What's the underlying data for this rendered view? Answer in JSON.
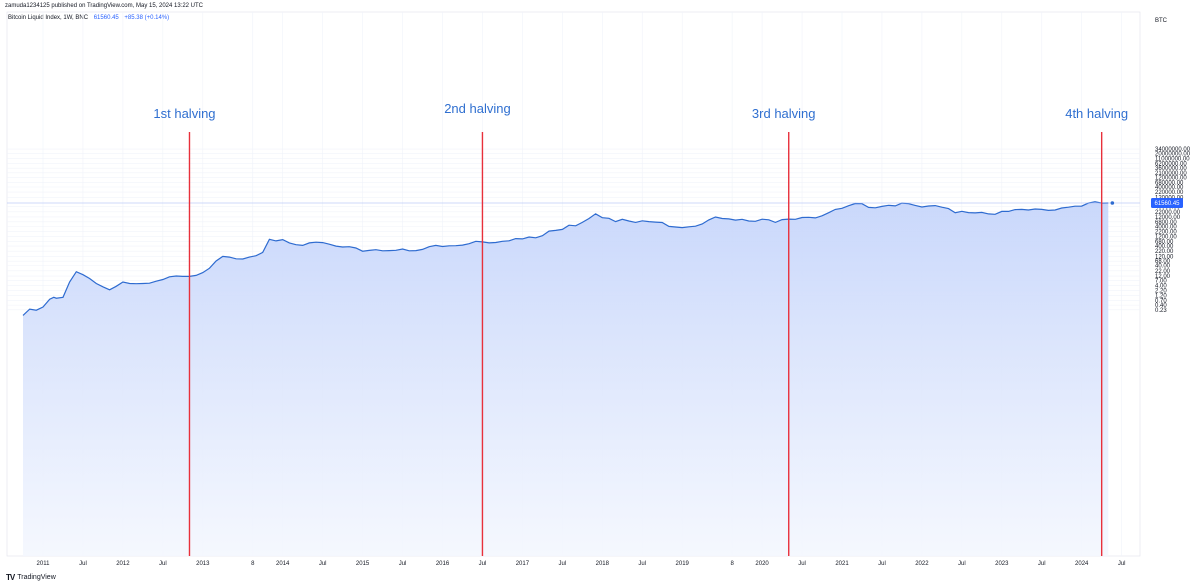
{
  "header": {
    "published_text": "zamuda1234125 published on TradingView.com, May 15, 2024 13:22 UTC"
  },
  "legend": {
    "symbol": "Bitcoin Liquid Index, 1W, BNC",
    "last_price": "61560.45",
    "change": "+85.38 (+0.14%)"
  },
  "footer": {
    "logo_text": "TradingView"
  },
  "colors": {
    "line": "#2e6bd0",
    "fill_top": "#c7d6fb",
    "fill_bottom": "#f4f7fe",
    "halving_line": "#e8303b",
    "halving_text": "#2f6fd0",
    "price_label_bg": "#2962ff"
  },
  "chart_data": {
    "type": "area",
    "title": "",
    "xlabel": "",
    "ylabel": "",
    "currency": "BTC",
    "y_scale": "log",
    "grid": true,
    "last_price": 61560.45,
    "last_price_label": "61560.45",
    "time_range": [
      "2010-10",
      "2024-05"
    ],
    "x_ticks": [
      "2011",
      "Jul",
      "2012",
      "Jul",
      "2013",
      "8",
      "2014",
      "Jul",
      "2015",
      "Jul",
      "2016",
      "Jul",
      "2017",
      "Jul",
      "2018",
      "Jul",
      "2019",
      "8",
      "2020",
      "Jul",
      "2021",
      "Jul",
      "2022",
      "Jul",
      "2023",
      "Jul",
      "2024",
      "Jul"
    ],
    "y_ticks": [
      "0.23",
      "0.40",
      "0.70",
      "1.20",
      "2.20",
      "4.00",
      "7.00",
      "12.00",
      "22.00",
      "40.00",
      "68.00",
      "120.00",
      "220.00",
      "400.00",
      "680.00",
      "1200.00",
      "2200.00",
      "4000.00",
      "6800.00",
      "12000.00",
      "22000.00",
      "40000.00",
      "120000.00",
      "220000.00",
      "400000.00",
      "680000.00",
      "1200000.00",
      "2100000.00",
      "3600000.00",
      "6200000.00",
      "11000000.00",
      "20000000.00",
      "34000000.00"
    ],
    "halvings": [
      {
        "label": "1st halving",
        "date": "2012-11"
      },
      {
        "label": "2nd halving",
        "date": "2016-07"
      },
      {
        "label": "3rd halving",
        "date": "2020-05"
      },
      {
        "label": "4th halving",
        "date": "2024-04"
      }
    ],
    "series": [
      {
        "values": [
          [
            "2010-10",
            0.12
          ],
          [
            "2010-11",
            0.25
          ],
          [
            "2010-12",
            0.22
          ],
          [
            "2011-01",
            0.32
          ],
          [
            "2011-02",
            0.8
          ],
          [
            "2011-02-20",
            1.0
          ],
          [
            "2011-03",
            0.9
          ],
          [
            "2011-04",
            1.0
          ],
          [
            "2011-05",
            6.0
          ],
          [
            "2011-06",
            20.0
          ],
          [
            "2011-07",
            14.0
          ],
          [
            "2011-08",
            9.0
          ],
          [
            "2011-09",
            5.0
          ],
          [
            "2011-10",
            3.4
          ],
          [
            "2011-11",
            2.4
          ],
          [
            "2011-12",
            3.6
          ],
          [
            "2012-01",
            6.0
          ],
          [
            "2012-02",
            5.0
          ],
          [
            "2012-03",
            4.9
          ],
          [
            "2012-04",
            5.0
          ],
          [
            "2012-05",
            5.2
          ],
          [
            "2012-06",
            6.6
          ],
          [
            "2012-07",
            8.0
          ],
          [
            "2012-08",
            11.0
          ],
          [
            "2012-09",
            12.0
          ],
          [
            "2012-10",
            11.5
          ],
          [
            "2012-11",
            11.5
          ],
          [
            "2012-12",
            13.0
          ],
          [
            "2013-01",
            18.0
          ],
          [
            "2013-02",
            30.0
          ],
          [
            "2013-03",
            70.0
          ],
          [
            "2013-04",
            120.0
          ],
          [
            "2013-05",
            110.0
          ],
          [
            "2013-06",
            90.0
          ],
          [
            "2013-07",
            88.0
          ],
          [
            "2013-08",
            110.0
          ],
          [
            "2013-09",
            130.0
          ],
          [
            "2013-10",
            190.0
          ],
          [
            "2013-11",
            880.0
          ],
          [
            "2013-12",
            730.0
          ],
          [
            "2014-01",
            850.0
          ],
          [
            "2014-02",
            580.0
          ],
          [
            "2014-03",
            470.0
          ],
          [
            "2014-04",
            430.0
          ],
          [
            "2014-05",
            580.0
          ],
          [
            "2014-06",
            630.0
          ],
          [
            "2014-07",
            600.0
          ],
          [
            "2014-08",
            500.0
          ],
          [
            "2014-09",
            400.0
          ],
          [
            "2014-10",
            360.0
          ],
          [
            "2014-11",
            370.0
          ],
          [
            "2014-12",
            320.0
          ],
          [
            "2015-01",
            220.0
          ],
          [
            "2015-02",
            240.0
          ],
          [
            "2015-03",
            260.0
          ],
          [
            "2015-04",
            230.0
          ],
          [
            "2015-05",
            235.0
          ],
          [
            "2015-06",
            245.0
          ],
          [
            "2015-07",
            285.0
          ],
          [
            "2015-08",
            230.0
          ],
          [
            "2015-09",
            235.0
          ],
          [
            "2015-10",
            270.0
          ],
          [
            "2015-11",
            370.0
          ],
          [
            "2015-12",
            430.0
          ],
          [
            "2016-01",
            380.0
          ],
          [
            "2016-02",
            410.0
          ],
          [
            "2016-03",
            415.0
          ],
          [
            "2016-04",
            445.0
          ],
          [
            "2016-05",
            530.0
          ],
          [
            "2016-06",
            700.0
          ],
          [
            "2016-07",
            650.0
          ],
          [
            "2016-08",
            580.0
          ],
          [
            "2016-09",
            605.0
          ],
          [
            "2016-10",
            700.0
          ],
          [
            "2016-11",
            740.0
          ],
          [
            "2016-12",
            960.0
          ],
          [
            "2017-01",
            920.0
          ],
          [
            "2017-02",
            1150.0
          ],
          [
            "2017-03",
            1050.0
          ],
          [
            "2017-04",
            1350.0
          ],
          [
            "2017-05",
            2300.0
          ],
          [
            "2017-06",
            2500.0
          ],
          [
            "2017-07",
            2800.0
          ],
          [
            "2017-08",
            4600.0
          ],
          [
            "2017-09",
            4300.0
          ],
          [
            "2017-10",
            6400.0
          ],
          [
            "2017-11",
            10000.0
          ],
          [
            "2017-12",
            17500.0
          ],
          [
            "2018-01",
            11000.0
          ],
          [
            "2018-02",
            10300.0
          ],
          [
            "2018-03",
            7000.0
          ],
          [
            "2018-04",
            9200.0
          ],
          [
            "2018-05",
            7500.0
          ],
          [
            "2018-06",
            6400.0
          ],
          [
            "2018-07",
            7700.0
          ],
          [
            "2018-08",
            7000.0
          ],
          [
            "2018-09",
            6600.0
          ],
          [
            "2018-10",
            6300.0
          ],
          [
            "2018-11",
            4000.0
          ],
          [
            "2018-12",
            3700.0
          ],
          [
            "2019-01",
            3450.0
          ],
          [
            "2019-02",
            3800.0
          ],
          [
            "2019-03",
            4100.0
          ],
          [
            "2019-04",
            5300.0
          ],
          [
            "2019-05",
            8500.0
          ],
          [
            "2019-06",
            12000.0
          ],
          [
            "2019-07",
            10000.0
          ],
          [
            "2019-08",
            9600.0
          ],
          [
            "2019-09",
            8300.0
          ],
          [
            "2019-10",
            9200.0
          ],
          [
            "2019-11",
            7500.0
          ],
          [
            "2019-12",
            7200.0
          ],
          [
            "2020-01",
            9300.0
          ],
          [
            "2020-02",
            8600.0
          ],
          [
            "2020-03",
            6400.0
          ],
          [
            "2020-04",
            8800.0
          ],
          [
            "2020-05",
            9400.0
          ],
          [
            "2020-06",
            9100.0
          ],
          [
            "2020-07",
            11300.0
          ],
          [
            "2020-08",
            11600.0
          ],
          [
            "2020-09",
            10800.0
          ],
          [
            "2020-10",
            13800.0
          ],
          [
            "2020-11",
            19700.0
          ],
          [
            "2020-12",
            29000.0
          ],
          [
            "2021-01",
            33000.0
          ],
          [
            "2021-02",
            45000.0
          ],
          [
            "2021-03",
            58000.0
          ],
          [
            "2021-04",
            57000.0
          ],
          [
            "2021-05",
            37000.0
          ],
          [
            "2021-06",
            35000.0
          ],
          [
            "2021-07",
            41500.0
          ],
          [
            "2021-08",
            47000.0
          ],
          [
            "2021-09",
            43800.0
          ],
          [
            "2021-10",
            61000.0
          ],
          [
            "2021-11",
            57000.0
          ],
          [
            "2021-12",
            46300.0
          ],
          [
            "2022-01",
            38500.0
          ],
          [
            "2022-02",
            43200.0
          ],
          [
            "2022-03",
            45500.0
          ],
          [
            "2022-04",
            37700.0
          ],
          [
            "2022-05",
            31800.0
          ],
          [
            "2022-06",
            19900.0
          ],
          [
            "2022-07",
            23300.0
          ],
          [
            "2022-08",
            20000.0
          ],
          [
            "2022-09",
            19400.0
          ],
          [
            "2022-10",
            20500.0
          ],
          [
            "2022-11",
            17200.0
          ],
          [
            "2022-12",
            16500.0
          ],
          [
            "2023-01",
            23100.0
          ],
          [
            "2023-02",
            23100.0
          ],
          [
            "2023-03",
            28500.0
          ],
          [
            "2023-04",
            29200.0
          ],
          [
            "2023-05",
            27200.0
          ],
          [
            "2023-06",
            30500.0
          ],
          [
            "2023-07",
            29200.0
          ],
          [
            "2023-08",
            26000.0
          ],
          [
            "2023-09",
            27000.0
          ],
          [
            "2023-10",
            34500.0
          ],
          [
            "2023-11",
            37700.0
          ],
          [
            "2023-12",
            42300.0
          ],
          [
            "2024-01",
            42600.0
          ],
          [
            "2024-02",
            61200.0
          ],
          [
            "2024-03",
            71300.0
          ],
          [
            "2024-04",
            60600.0
          ],
          [
            "2024-05",
            61560.45
          ]
        ]
      }
    ]
  }
}
